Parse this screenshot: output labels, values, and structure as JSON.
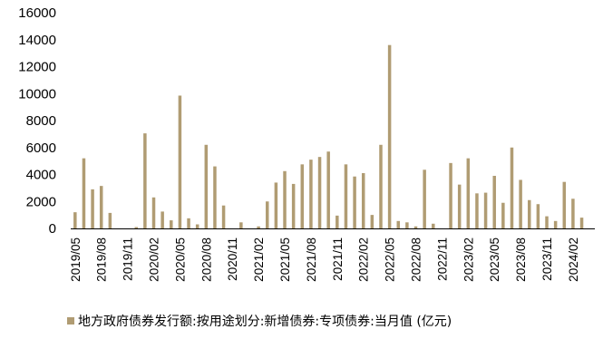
{
  "chart_data": {
    "type": "bar",
    "color": "#b09c73",
    "ylim": [
      0,
      16000
    ],
    "yticks": [
      0,
      2000,
      4000,
      6000,
      8000,
      10000,
      12000,
      14000,
      16000
    ],
    "yticklabels": [
      "0",
      "2000",
      "4000",
      "6000",
      "8000",
      "10000",
      "12000",
      "14000",
      "16000"
    ],
    "grid": false,
    "legend_position": "bottom",
    "categories": [
      "2019/05",
      "2019/06",
      "2019/07",
      "2019/08",
      "2019/09",
      "2019/10",
      "2019/11",
      "2019/12",
      "2020/01",
      "2020/02",
      "2020/03",
      "2020/04",
      "2020/05",
      "2020/06",
      "2020/07",
      "2020/08",
      "2020/09",
      "2020/10",
      "2020/11",
      "2020/12",
      "2021/01",
      "2021/02",
      "2021/03",
      "2021/04",
      "2021/05",
      "2021/06",
      "2021/07",
      "2021/08",
      "2021/09",
      "2021/10",
      "2021/11",
      "2021/12",
      "2022/01",
      "2022/02",
      "2022/03",
      "2022/04",
      "2022/05",
      "2022/06",
      "2022/07",
      "2022/08",
      "2022/09",
      "2022/10",
      "2022/11",
      "2022/12",
      "2023/01",
      "2023/02",
      "2023/03",
      "2023/04",
      "2023/05",
      "2023/06",
      "2023/07",
      "2023/08",
      "2023/09",
      "2023/10",
      "2023/11",
      "2023/12",
      "2024/01",
      "2024/02",
      "2024/03",
      "2024/04"
    ],
    "xticklabels": [
      "2019/05",
      "2019/08",
      "2019/11",
      "2020/02",
      "2020/05",
      "2020/08",
      "2020/11",
      "2021/02",
      "2021/05",
      "2021/08",
      "2021/11",
      "2022/02",
      "2022/05",
      "2022/08",
      "2022/11",
      "2023/02",
      "2023/05",
      "2023/08",
      "2023/11",
      "2024/02"
    ],
    "series": [
      {
        "name": "地方政府债券发行额:按用途划分:新增债券:专项债券:当月值 (亿元)",
        "values": [
          1200,
          5200,
          2900,
          3150,
          1150,
          0,
          0,
          100,
          7050,
          2300,
          1250,
          600,
          9850,
          750,
          300,
          6200,
          4600,
          1700,
          0,
          450,
          0,
          150,
          2000,
          3400,
          4250,
          3300,
          4750,
          5100,
          5300,
          5700,
          950,
          4750,
          3850,
          4100,
          1000,
          6200,
          13600,
          550,
          450,
          150,
          4350,
          350,
          0,
          4850,
          3250,
          5200,
          2600,
          2650,
          3900,
          1900,
          6000,
          3600,
          2100,
          1800,
          900,
          550,
          3450,
          2200,
          800,
          0
        ]
      }
    ]
  }
}
